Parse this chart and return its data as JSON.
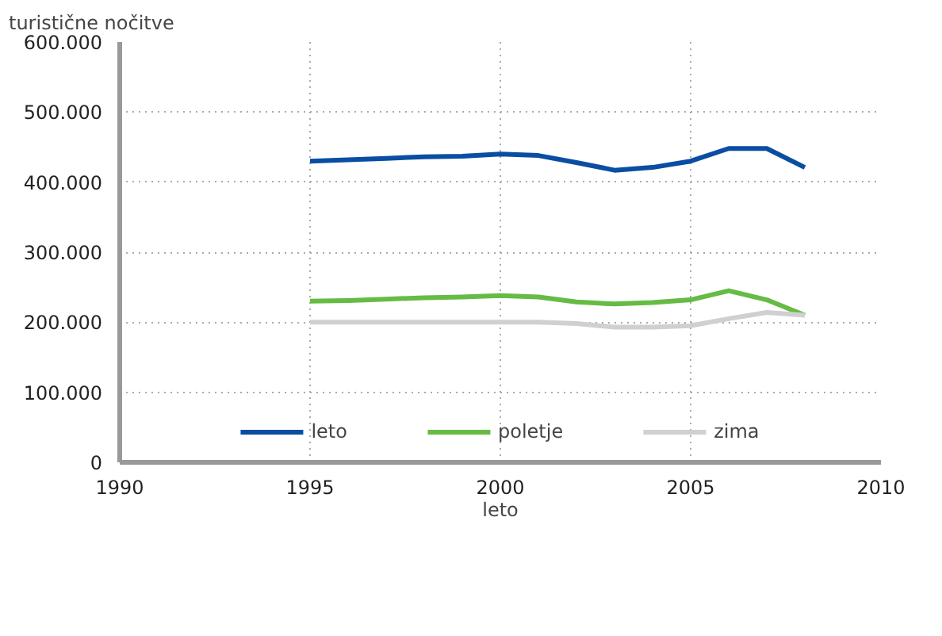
{
  "chart_data": {
    "type": "line",
    "ylabel": "turistične nočitve",
    "xlabel": "leto",
    "x": [
      1995,
      1996,
      1997,
      1998,
      1999,
      2000,
      2001,
      2002,
      2003,
      2004,
      2005,
      2006,
      2007,
      2008
    ],
    "series": [
      {
        "name": "leto",
        "color": "#0a4ea3",
        "values": [
          430000,
          432000,
          434000,
          436000,
          437000,
          440000,
          438000,
          428000,
          417000,
          421000,
          430000,
          448000,
          448000,
          421000
        ]
      },
      {
        "name": "poletje",
        "color": "#66bb44",
        "values": [
          230000,
          231000,
          233000,
          235000,
          236000,
          238000,
          236000,
          229000,
          226000,
          228000,
          232000,
          245000,
          232000,
          210000
        ]
      },
      {
        "name": "zima",
        "color": "#d0d0d0",
        "values": [
          200000,
          200000,
          200000,
          200000,
          200000,
          200000,
          200000,
          198000,
          193000,
          193000,
          195000,
          205000,
          214000,
          210000
        ]
      }
    ],
    "xlim": [
      1990,
      2010
    ],
    "xticks": [
      1990,
      1995,
      2000,
      2005,
      2010
    ],
    "ylim": [
      0,
      600000
    ],
    "yticks": [
      {
        "value": 0,
        "label": "0"
      },
      {
        "value": 100000,
        "label": "100.000"
      },
      {
        "value": 200000,
        "label": "200.000"
      },
      {
        "value": 300000,
        "label": "300.000"
      },
      {
        "value": 400000,
        "label": "400.000"
      },
      {
        "value": 500000,
        "label": "500.000"
      },
      {
        "value": 600000,
        "label": "600.000"
      }
    ],
    "grid": true,
    "legend": "bottom",
    "line_style": "solid",
    "marker": "none"
  }
}
